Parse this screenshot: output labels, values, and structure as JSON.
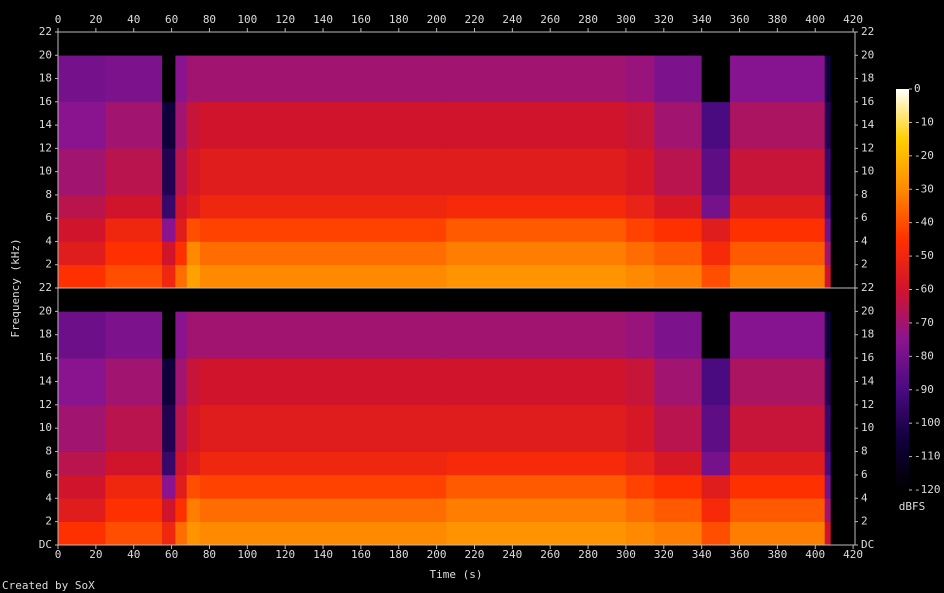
{
  "chart_data": {
    "type": "spectrogram",
    "xlabel": "Time (s)",
    "ylabel": "Frequency (kHz)",
    "credit": "Created by SoX",
    "xlim": [
      0,
      421
    ],
    "xticks": [
      0,
      20,
      40,
      60,
      80,
      100,
      120,
      140,
      160,
      180,
      200,
      220,
      240,
      260,
      280,
      300,
      320,
      340,
      360,
      380,
      400,
      420
    ],
    "time_bins": [
      0,
      25,
      55,
      62,
      68,
      75,
      205,
      300,
      315,
      340,
      355,
      405,
      408
    ],
    "freq_bins": [
      0,
      2,
      4,
      6,
      8,
      12,
      16,
      20,
      22
    ],
    "channels": [
      {
        "ylim": [
          0,
          22
        ],
        "yticks": [
          2,
          4,
          6,
          8,
          10,
          12,
          14,
          16,
          18,
          20,
          22
        ],
        "values": [
          [
            -45,
            -55,
            -60,
            -65,
            -70,
            -75,
            -80,
            -120
          ],
          [
            -40,
            -45,
            -50,
            -60,
            -65,
            -70,
            -78,
            -120
          ],
          [
            -50,
            -60,
            -75,
            -95,
            -100,
            -105,
            -120,
            -120
          ],
          [
            -35,
            -45,
            -55,
            -60,
            -65,
            -70,
            -75,
            -120
          ],
          [
            -25,
            -30,
            -40,
            -55,
            -58,
            -62,
            -70,
            -120
          ],
          [
            -30,
            -35,
            -42,
            -50,
            -55,
            -60,
            -70,
            -120
          ],
          [
            -28,
            -32,
            -38,
            -48,
            -55,
            -60,
            -70,
            -120
          ],
          [
            -30,
            -35,
            -42,
            -52,
            -58,
            -62,
            -72,
            -120
          ],
          [
            -32,
            -38,
            -45,
            -58,
            -65,
            -70,
            -78,
            -120
          ],
          [
            -40,
            -48,
            -55,
            -80,
            -85,
            -90,
            -120,
            -120
          ],
          [
            -32,
            -38,
            -45,
            -55,
            -62,
            -68,
            -76,
            -120
          ],
          [
            -60,
            -70,
            -80,
            -90,
            -95,
            -100,
            -105,
            -120
          ]
        ]
      },
      {
        "ylim": [
          0,
          22
        ],
        "yticks": [
          {
            "value": 0,
            "label": "DC"
          },
          2,
          4,
          6,
          8,
          10,
          12,
          14,
          16,
          18,
          20,
          22
        ],
        "values": [
          [
            -45,
            -55,
            -60,
            -65,
            -70,
            -75,
            -82,
            -120
          ],
          [
            -40,
            -45,
            -50,
            -60,
            -65,
            -70,
            -78,
            -120
          ],
          [
            -50,
            -60,
            -75,
            -95,
            -100,
            -105,
            -120,
            -120
          ],
          [
            -35,
            -45,
            -55,
            -60,
            -65,
            -70,
            -75,
            -120
          ],
          [
            -28,
            -32,
            -40,
            -55,
            -58,
            -62,
            -70,
            -120
          ],
          [
            -30,
            -35,
            -42,
            -50,
            -55,
            -60,
            -70,
            -120
          ],
          [
            -28,
            -32,
            -38,
            -48,
            -55,
            -60,
            -70,
            -120
          ],
          [
            -30,
            -35,
            -42,
            -52,
            -58,
            -62,
            -72,
            -120
          ],
          [
            -32,
            -38,
            -45,
            -58,
            -65,
            -70,
            -78,
            -120
          ],
          [
            -40,
            -48,
            -55,
            -80,
            -85,
            -90,
            -120,
            -120
          ],
          [
            -32,
            -38,
            -45,
            -55,
            -62,
            -68,
            -76,
            -120
          ],
          [
            -60,
            -70,
            -80,
            -90,
            -95,
            -100,
            -105,
            -120
          ]
        ]
      }
    ],
    "colorbar": {
      "label": "dBFS",
      "clim": [
        -120,
        0
      ],
      "ticks": [
        0,
        -10,
        -20,
        -30,
        -40,
        -50,
        -60,
        -70,
        -80,
        -90,
        -100,
        -110,
        -120
      ],
      "colormap": [
        "#000000",
        "#10003a",
        "#4a0a80",
        "#8a1490",
        "#d0142c",
        "#ff3000",
        "#ff8a00",
        "#ffd000",
        "#ffffff"
      ]
    }
  }
}
